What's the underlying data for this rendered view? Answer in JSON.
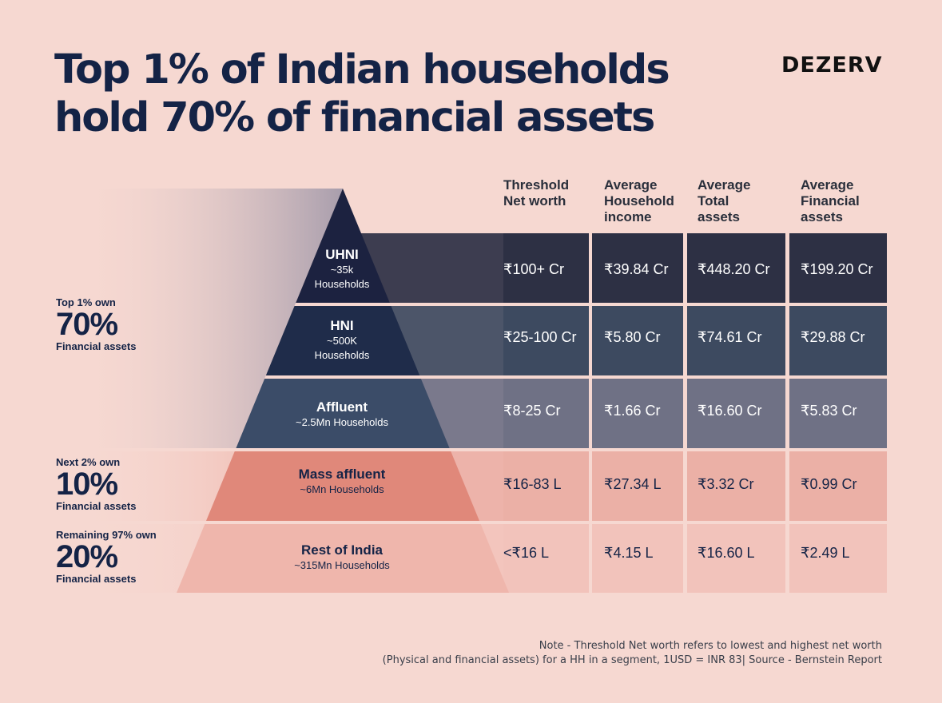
{
  "title_lines": [
    "Top 1% of Indian households",
    "hold 70% of financial assets"
  ],
  "brand": "DEZERV",
  "columns": [
    [
      "Threshold",
      "Net worth"
    ],
    [
      "Average",
      "Household",
      "income"
    ],
    [
      "Average",
      "Total",
      "assets"
    ],
    [
      "Average",
      "Financial",
      "assets"
    ]
  ],
  "segments": [
    {
      "name": "UHNI",
      "sub": [
        "~35k",
        "Households"
      ],
      "values": [
        "₹100+ Cr",
        "₹39.84 Cr",
        "₹448.20 Cr",
        "₹199.20 Cr"
      ],
      "row_color": "#2d3044",
      "tri_color": "#1c2240",
      "text_color": "#ffffff"
    },
    {
      "name": "HNI",
      "sub": [
        "~500K",
        "Households"
      ],
      "values": [
        "₹25-100 Cr",
        "₹5.80 Cr",
        "₹74.61 Cr",
        "₹29.88 Cr"
      ],
      "row_color": "#3d4a60",
      "tri_color": "#1f2c4a",
      "text_color": "#ffffff"
    },
    {
      "name": "Affluent",
      "sub": [
        "~2.5Mn Households"
      ],
      "values": [
        "₹8-25 Cr",
        "₹1.66 Cr",
        "₹16.60 Cr",
        "₹5.83 Cr"
      ],
      "row_color": "#6f7185",
      "tri_color": "#3b4c68",
      "text_color": "#ffffff"
    },
    {
      "name": "Mass affluent",
      "sub": [
        "~6Mn Households"
      ],
      "values": [
        "₹16-83 L",
        "₹27.34 L",
        "₹3.32 Cr",
        "₹0.99 Cr"
      ],
      "row_color": "#ebb0a6",
      "tri_color": "#e0887a",
      "text_color": "#142346"
    },
    {
      "name": "Rest of India",
      "sub": [
        "~315Mn Households"
      ],
      "values": [
        "<₹16 L",
        "₹4.15 L",
        "₹16.60 L",
        "₹2.49 L"
      ],
      "row_color": "#f2c3bb",
      "tri_color": "#efb6ac",
      "text_color": "#142346"
    }
  ],
  "shares": [
    {
      "lead": "Top 1% own",
      "pct": "70%",
      "tail": "Financial assets"
    },
    {
      "lead": "Next 2% own",
      "pct": "10%",
      "tail": "Financial assets"
    },
    {
      "lead": "Remaining 97% own",
      "pct": "20%",
      "tail": "Financial assets"
    }
  ],
  "note": [
    "Note - Threshold Net worth refers to lowest and highest net worth",
    "(Physical and financial assets) for a HH in a segment, 1USD = INR 83| Source - Bernstein Report"
  ],
  "chart_data": {
    "type": "table",
    "title": "Top 1% of Indian households hold 70% of financial assets",
    "columns": [
      "Threshold Net worth",
      "Average Household income",
      "Average Total assets",
      "Average Financial assets"
    ],
    "rows": [
      {
        "segment": "UHNI",
        "households": "~35k",
        "values": [
          "₹100+ Cr",
          "₹39.84 Cr",
          "₹448.20 Cr",
          "₹199.20 Cr"
        ]
      },
      {
        "segment": "HNI",
        "households": "~500K",
        "values": [
          "₹25-100 Cr",
          "₹5.80 Cr",
          "₹74.61 Cr",
          "₹29.88 Cr"
        ]
      },
      {
        "segment": "Affluent",
        "households": "~2.5Mn",
        "values": [
          "₹8-25 Cr",
          "₹1.66 Cr",
          "₹16.60 Cr",
          "₹5.83 Cr"
        ]
      },
      {
        "segment": "Mass affluent",
        "households": "~6Mn",
        "values": [
          "₹16-83 L",
          "₹27.34 L",
          "₹3.32 Cr",
          "₹0.99 Cr"
        ]
      },
      {
        "segment": "Rest of India",
        "households": "~315Mn",
        "values": [
          "<₹16 L",
          "₹4.15 L",
          "₹16.60 L",
          "₹2.49 L"
        ]
      }
    ],
    "financial_asset_share": [
      {
        "group": "Top 1%",
        "percent": 70
      },
      {
        "group": "Next 2%",
        "percent": 10
      },
      {
        "group": "Remaining 97%",
        "percent": 20
      }
    ]
  }
}
